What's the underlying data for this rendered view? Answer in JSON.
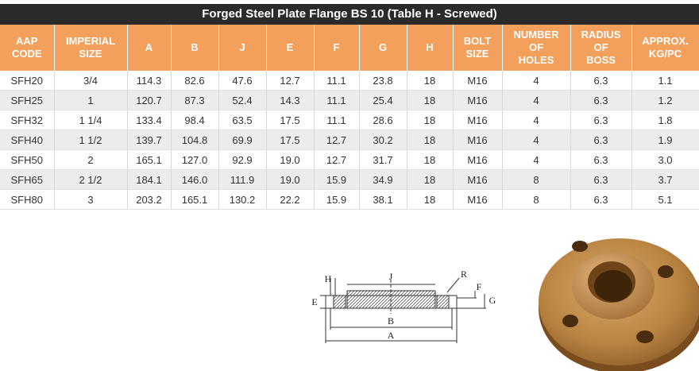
{
  "table": {
    "title": "Forged Steel Plate Flange  BS 10  (Table H - Screwed)",
    "headers": [
      [
        "AAP",
        "CODE"
      ],
      [
        "IMPERIAL",
        "SIZE"
      ],
      [
        "A"
      ],
      [
        "B"
      ],
      [
        "J"
      ],
      [
        "E"
      ],
      [
        "F"
      ],
      [
        "G"
      ],
      [
        "H"
      ],
      [
        "BOLT",
        "SIZE"
      ],
      [
        "NUMBER",
        "OF",
        "HOLES"
      ],
      [
        "RADIUS",
        "OF",
        "BOSS"
      ],
      [
        "APPROX.",
        "KG/PC"
      ]
    ],
    "rows": [
      [
        "SFH20",
        "3/4",
        "114.3",
        "82.6",
        "47.6",
        "12.7",
        "11.1",
        "23.8",
        "18",
        "M16",
        "4",
        "6.3",
        "1.1"
      ],
      [
        "SFH25",
        "1",
        "120.7",
        "87.3",
        "52.4",
        "14.3",
        "11.1",
        "25.4",
        "18",
        "M16",
        "4",
        "6.3",
        "1.2"
      ],
      [
        "SFH32",
        "1 1/4",
        "133.4",
        "98.4",
        "63.5",
        "17.5",
        "11.1",
        "28.6",
        "18",
        "M16",
        "4",
        "6.3",
        "1.8"
      ],
      [
        "SFH40",
        "1 1/2",
        "139.7",
        "104.8",
        "69.9",
        "17.5",
        "12.7",
        "30.2",
        "18",
        "M16",
        "4",
        "6.3",
        "1.9"
      ],
      [
        "SFH50",
        "2",
        "165.1",
        "127.0",
        "92.9",
        "19.0",
        "12.7",
        "31.7",
        "18",
        "M16",
        "4",
        "6.3",
        "3.0"
      ],
      [
        "SFH65",
        "2 1/2",
        "184.1",
        "146.0",
        "111.9",
        "19.0",
        "15.9",
        "34.9",
        "18",
        "M16",
        "8",
        "6.3",
        "3.7"
      ],
      [
        "SFH80",
        "3",
        "203.2",
        "165.1",
        "130.2",
        "22.2",
        "15.9",
        "38.1",
        "18",
        "M16",
        "8",
        "6.3",
        "5.1"
      ]
    ]
  },
  "diagram": {
    "labels": {
      "H": "H",
      "J": "J",
      "R": "R",
      "F": "F",
      "E": "E",
      "G": "G",
      "B": "B",
      "A": "A"
    }
  }
}
